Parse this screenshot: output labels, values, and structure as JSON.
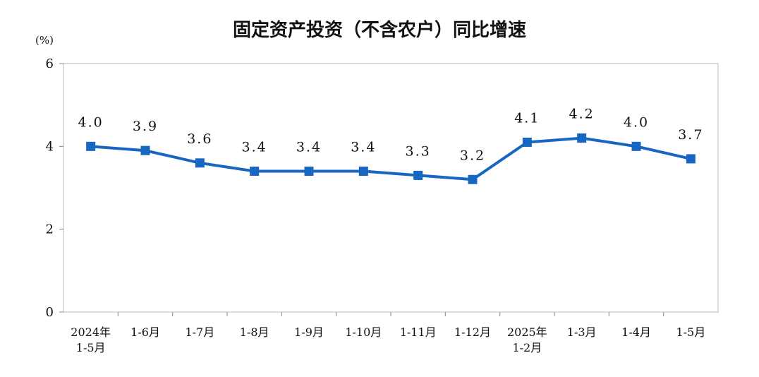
{
  "chart_data": {
    "type": "line",
    "title": "固定资产投资（不含农户）同比增速",
    "ylabel": "(%)",
    "ylim": [
      0,
      6
    ],
    "yticks": [
      "0",
      "2",
      "4",
      "6"
    ],
    "grid": false,
    "categories": [
      [
        "2024年",
        "1-5月"
      ],
      [
        "1-6月"
      ],
      [
        "1-7月"
      ],
      [
        "1-8月"
      ],
      [
        "1-9月"
      ],
      [
        "1-10月"
      ],
      [
        "1-11月"
      ],
      [
        "1-12月"
      ],
      [
        "2025年",
        "1-2月"
      ],
      [
        "1-3月"
      ],
      [
        "1-4月"
      ],
      [
        "1-5月"
      ]
    ],
    "series": [
      {
        "values": [
          4.0,
          3.9,
          3.6,
          3.4,
          3.4,
          3.4,
          3.3,
          3.2,
          4.1,
          4.2,
          4.0,
          3.7
        ],
        "labels": [
          "4.0",
          "3.9",
          "3.6",
          "3.4",
          "3.4",
          "3.4",
          "3.3",
          "3.2",
          "4.1",
          "4.2",
          "4.0",
          "3.7"
        ],
        "color": "#1766C2"
      }
    ]
  }
}
